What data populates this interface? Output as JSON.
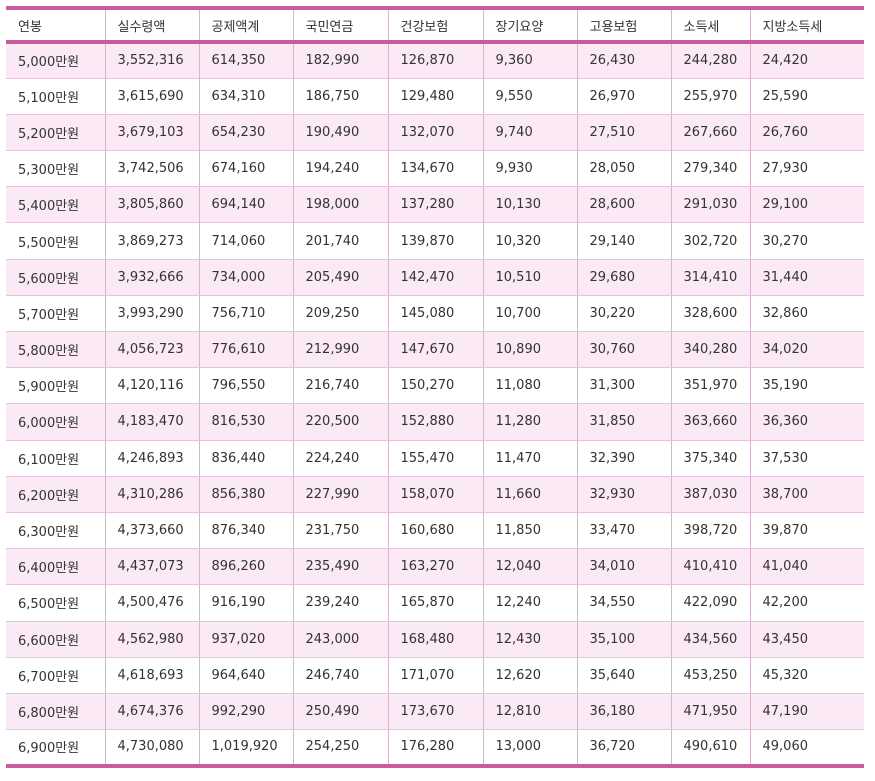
{
  "table": {
    "headers": [
      "연봉",
      "실수령액",
      "공제액계",
      "국민연금",
      "건강보험",
      "장기요양",
      "고용보험",
      "소득세",
      "지방소득세"
    ],
    "rows": [
      [
        "5,000만원",
        "3,552,316",
        "614,350",
        "182,990",
        "126,870",
        "9,360",
        "26,430",
        "244,280",
        "24,420"
      ],
      [
        "5,100만원",
        "3,615,690",
        "634,310",
        "186,750",
        "129,480",
        "9,550",
        "26,970",
        "255,970",
        "25,590"
      ],
      [
        "5,200만원",
        "3,679,103",
        "654,230",
        "190,490",
        "132,070",
        "9,740",
        "27,510",
        "267,660",
        "26,760"
      ],
      [
        "5,300만원",
        "3,742,506",
        "674,160",
        "194,240",
        "134,670",
        "9,930",
        "28,050",
        "279,340",
        "27,930"
      ],
      [
        "5,400만원",
        "3,805,860",
        "694,140",
        "198,000",
        "137,280",
        "10,130",
        "28,600",
        "291,030",
        "29,100"
      ],
      [
        "5,500만원",
        "3,869,273",
        "714,060",
        "201,740",
        "139,870",
        "10,320",
        "29,140",
        "302,720",
        "30,270"
      ],
      [
        "5,600만원",
        "3,932,666",
        "734,000",
        "205,490",
        "142,470",
        "10,510",
        "29,680",
        "314,410",
        "31,440"
      ],
      [
        "5,700만원",
        "3,993,290",
        "756,710",
        "209,250",
        "145,080",
        "10,700",
        "30,220",
        "328,600",
        "32,860"
      ],
      [
        "5,800만원",
        "4,056,723",
        "776,610",
        "212,990",
        "147,670",
        "10,890",
        "30,760",
        "340,280",
        "34,020"
      ],
      [
        "5,900만원",
        "4,120,116",
        "796,550",
        "216,740",
        "150,270",
        "11,080",
        "31,300",
        "351,970",
        "35,190"
      ],
      [
        "6,000만원",
        "4,183,470",
        "816,530",
        "220,500",
        "152,880",
        "11,280",
        "31,850",
        "363,660",
        "36,360"
      ],
      [
        "6,100만원",
        "4,246,893",
        "836,440",
        "224,240",
        "155,470",
        "11,470",
        "32,390",
        "375,340",
        "37,530"
      ],
      [
        "6,200만원",
        "4,310,286",
        "856,380",
        "227,990",
        "158,070",
        "11,660",
        "32,930",
        "387,030",
        "38,700"
      ],
      [
        "6,300만원",
        "4,373,660",
        "876,340",
        "231,750",
        "160,680",
        "11,850",
        "33,470",
        "398,720",
        "39,870"
      ],
      [
        "6,400만원",
        "4,437,073",
        "896,260",
        "235,490",
        "163,270",
        "12,040",
        "34,010",
        "410,410",
        "41,040"
      ],
      [
        "6,500만원",
        "4,500,476",
        "916,190",
        "239,240",
        "165,870",
        "12,240",
        "34,550",
        "422,090",
        "42,200"
      ],
      [
        "6,600만원",
        "4,562,980",
        "937,020",
        "243,000",
        "168,480",
        "12,430",
        "35,100",
        "434,560",
        "43,450"
      ],
      [
        "6,700만원",
        "4,618,693",
        "964,640",
        "246,740",
        "171,070",
        "12,620",
        "35,640",
        "453,250",
        "45,320"
      ],
      [
        "6,800만원",
        "4,674,376",
        "992,290",
        "250,490",
        "173,670",
        "12,810",
        "36,180",
        "471,950",
        "47,190"
      ],
      [
        "6,900만원",
        "4,730,080",
        "1,019,920",
        "254,250",
        "176,280",
        "13,000",
        "36,720",
        "490,610",
        "49,060"
      ]
    ]
  },
  "colors": {
    "accent": "#c85a9e",
    "stripe": "#fbeaf5",
    "grid": "#d9b3cf"
  }
}
